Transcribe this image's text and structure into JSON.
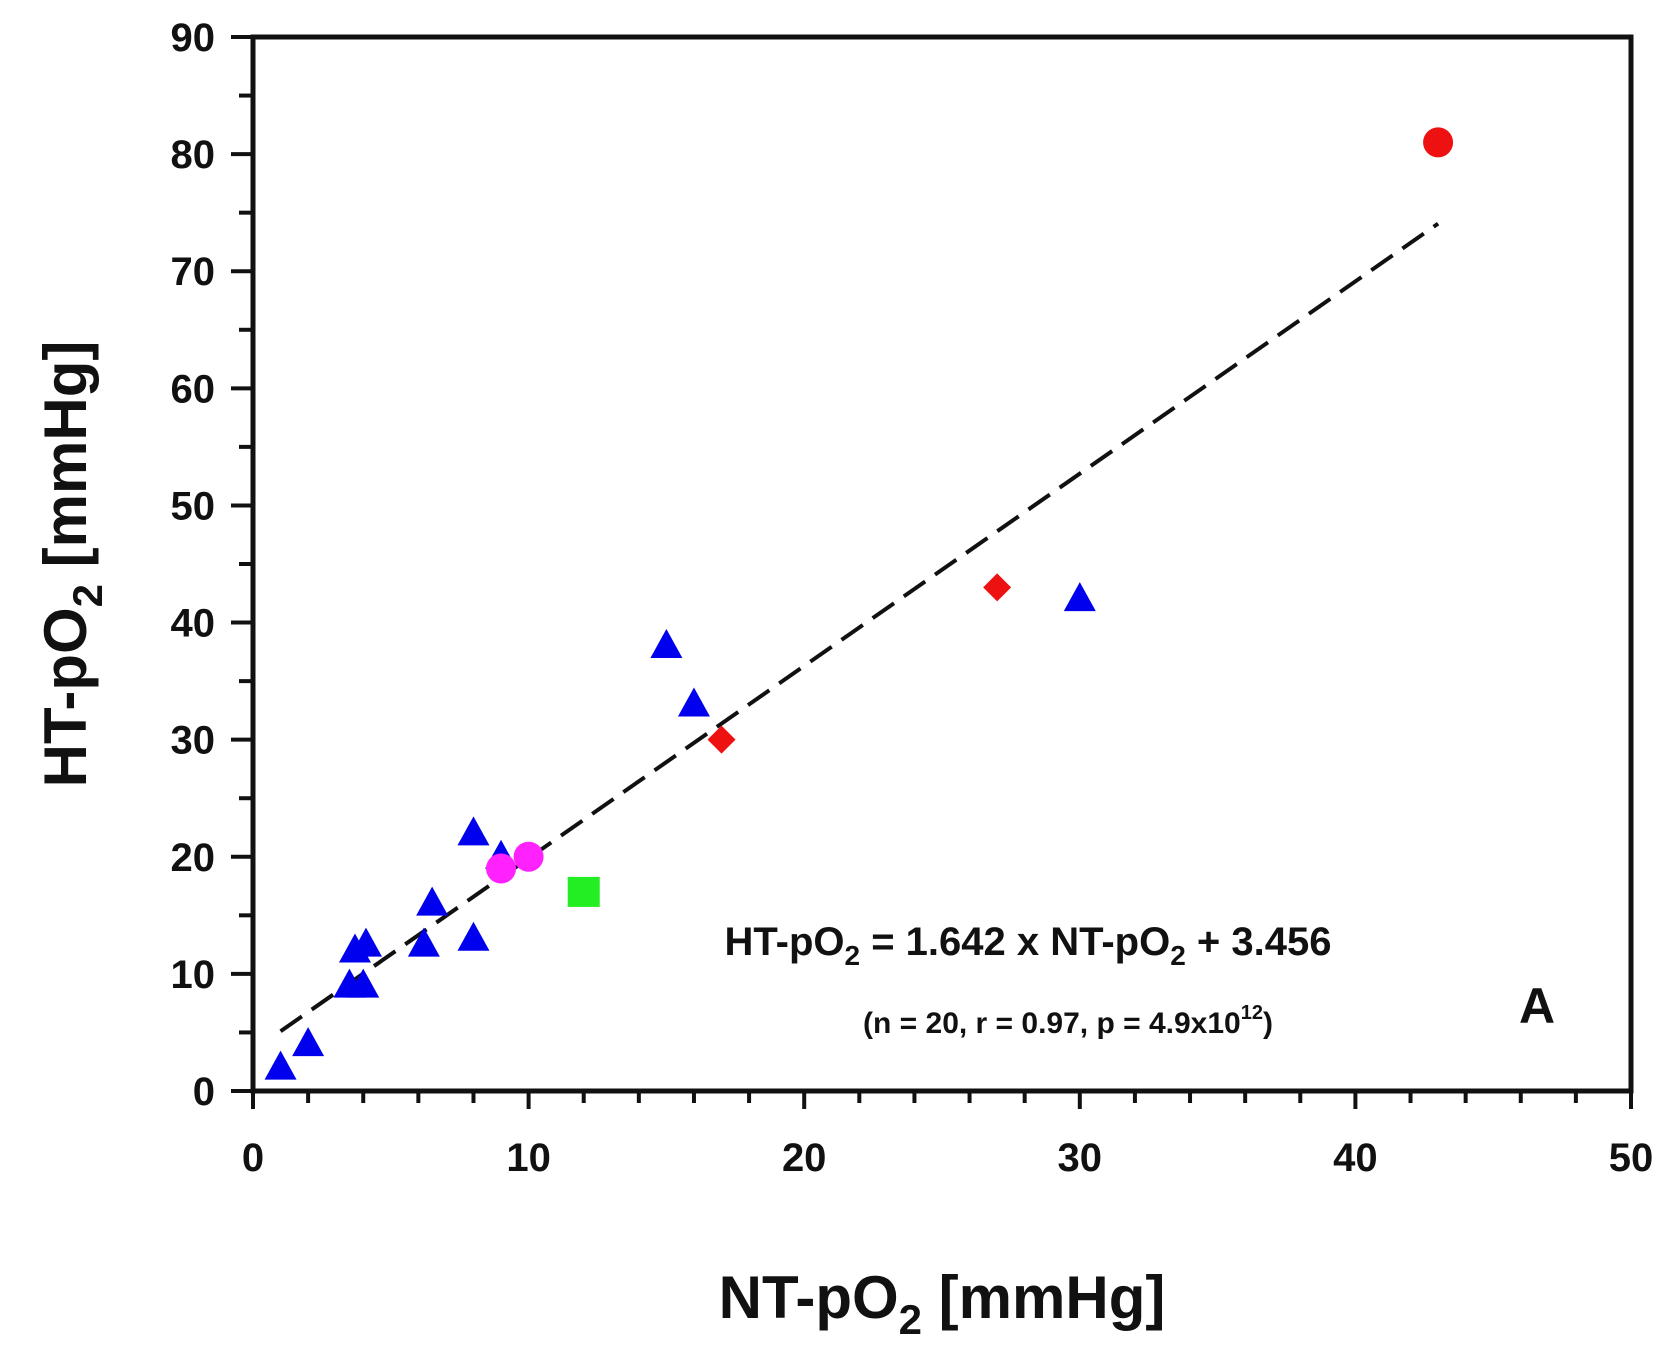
{
  "chart_data": {
    "type": "scatter",
    "xlabel": {
      "main": "NT-pO",
      "sub": "2",
      "rest": " [mmHg]"
    },
    "ylabel": {
      "main": "HT-pO",
      "sub": "2",
      "rest": " [mmHg]"
    },
    "xlim": [
      0,
      50
    ],
    "ylim": [
      0,
      90
    ],
    "xticks": [
      0,
      10,
      20,
      30,
      40,
      50
    ],
    "yticks": [
      0,
      10,
      20,
      30,
      40,
      50,
      60,
      70,
      80,
      90
    ],
    "grid": false,
    "panel_label": "A",
    "series": [
      {
        "name": "triangles",
        "marker": "triangle",
        "color": "#0000ee",
        "points": [
          [
            1,
            2
          ],
          [
            2,
            4
          ],
          [
            3.5,
            9
          ],
          [
            4,
            9
          ],
          [
            3.7,
            12
          ],
          [
            4.1,
            12.5
          ],
          [
            6.2,
            12.5
          ],
          [
            6.5,
            16
          ],
          [
            8,
            13
          ],
          [
            8,
            22
          ],
          [
            9,
            20
          ],
          [
            15,
            38
          ],
          [
            16,
            33
          ],
          [
            30,
            42
          ]
        ]
      },
      {
        "name": "magenta-circles",
        "marker": "circle",
        "color": "#ff22ff",
        "points": [
          [
            9,
            19
          ],
          [
            10,
            20
          ]
        ]
      },
      {
        "name": "green-square",
        "marker": "square",
        "color": "#22ee22",
        "points": [
          [
            12,
            17
          ]
        ]
      },
      {
        "name": "red-diamonds",
        "marker": "diamond",
        "color": "#ee1111",
        "points": [
          [
            17,
            30
          ],
          [
            27,
            43
          ]
        ]
      },
      {
        "name": "red-circle",
        "marker": "circle",
        "color": "#ee1111",
        "points": [
          [
            43,
            81
          ]
        ]
      }
    ],
    "fit": {
      "slope": 1.642,
      "intercept": 3.456,
      "x_range": [
        1,
        43
      ],
      "style": "dashed"
    },
    "annotation": {
      "equation": {
        "a": "HT-pO",
        "a_sub": "2",
        "b": " = 1.642 x NT-pO",
        "b_sub": "2",
        "c": " + 3.456"
      },
      "stats": {
        "pre": "(n = 20, r = 0.97, p = 4.9x10",
        "sup": "12",
        "post": ")"
      }
    }
  }
}
